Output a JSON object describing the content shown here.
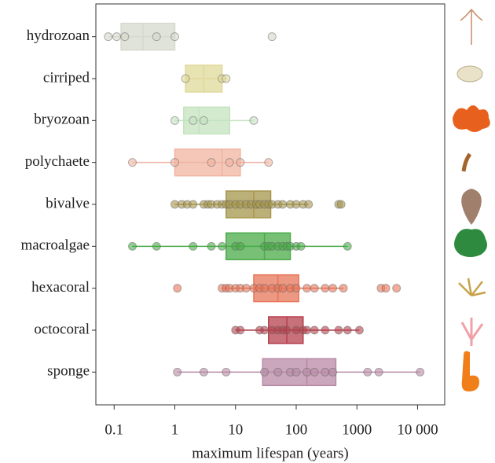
{
  "chart_data": {
    "type": "box",
    "x_label": "maximum lifespan (years)",
    "log_scale": "x",
    "xlim": [
      0.05,
      28000
    ],
    "xticks": [
      0.1,
      1,
      10,
      100,
      1000,
      {
        "value": 10000,
        "label": "10 000"
      }
    ],
    "categories": [
      "hydrozoan",
      "cirriped",
      "bryozoan",
      "polychaete",
      "bivalve",
      "macroalgae",
      "hexacoral",
      "octocoral",
      "sponge"
    ],
    "boxes": [
      {
        "color": "#d6d9cc",
        "min": 0.08,
        "q1": 0.13,
        "median": 0.3,
        "q3": 1.0,
        "max": 1.0,
        "points": [
          0.08,
          0.11,
          0.15,
          0.5,
          1.0,
          40
        ]
      },
      {
        "color": "#e0d99a",
        "min": 1.5,
        "q1": 1.5,
        "median": 3,
        "q3": 6,
        "max": 7,
        "points": [
          1.5,
          6,
          7
        ]
      },
      {
        "color": "#c4e3bf",
        "min": 1.0,
        "q1": 1.4,
        "median": 2.5,
        "q3": 8,
        "max": 20,
        "points": [
          1.0,
          2,
          3,
          20
        ]
      },
      {
        "color": "#f0b4a2",
        "min": 0.2,
        "q1": 1.0,
        "median": 6,
        "q3": 12,
        "max": 35,
        "points": [
          0.2,
          1,
          4,
          8,
          12,
          35
        ]
      },
      {
        "color": "#a6964c",
        "min": 1.0,
        "q1": 7,
        "median": 20,
        "q3": 38,
        "max": 160,
        "points": [
          1,
          1.3,
          1.6,
          2,
          3,
          3.5,
          4,
          5,
          6,
          7,
          8,
          10,
          12,
          15,
          18,
          22,
          25,
          30,
          35,
          40,
          50,
          60,
          80,
          100,
          130,
          160,
          500,
          550
        ]
      },
      {
        "color": "#4aab48",
        "min": 0.2,
        "q1": 7,
        "median": 30,
        "q3": 80,
        "max": 700,
        "points": [
          0.2,
          0.5,
          2,
          4,
          6,
          10,
          12,
          30,
          35,
          40,
          50,
          60,
          70,
          80,
          100,
          120,
          700
        ]
      },
      {
        "color": "#e77558",
        "min": 6,
        "q1": 20,
        "median": 50,
        "q3": 110,
        "max": 600,
        "points": [
          1.1,
          6,
          7,
          8,
          10,
          12,
          15,
          20,
          25,
          30,
          40,
          50,
          60,
          80,
          100,
          150,
          200,
          300,
          400,
          600,
          2500,
          3000,
          4500
        ]
      },
      {
        "color": "#b5414d",
        "min": 10,
        "q1": 35,
        "median": 70,
        "q3": 130,
        "max": 1100,
        "points": [
          10,
          12,
          25,
          30,
          40,
          50,
          60,
          70,
          100,
          130,
          150,
          200,
          300,
          500,
          700,
          1100
        ]
      },
      {
        "color": "#b88aa5",
        "min": 1.1,
        "q1": 28,
        "median": 150,
        "q3": 450,
        "max": 11000,
        "points": [
          1.1,
          3,
          7,
          30,
          50,
          80,
          100,
          150,
          200,
          300,
          400,
          1500,
          2300,
          11000
        ]
      }
    ]
  }
}
